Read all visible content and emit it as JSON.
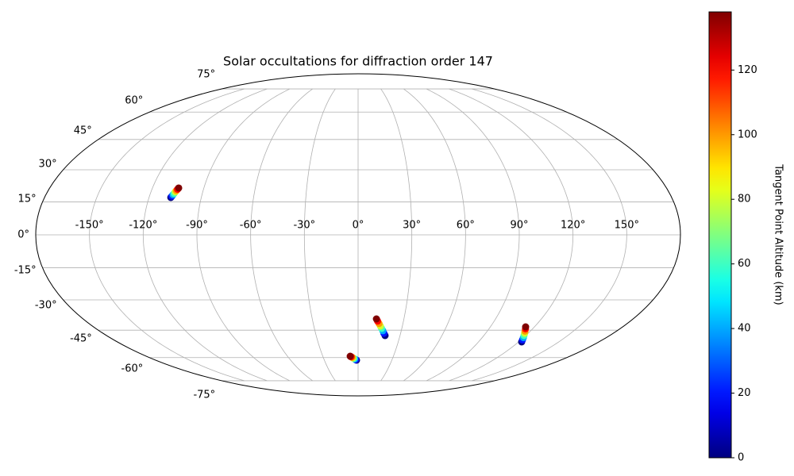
{
  "chart_data": {
    "type": "scatter",
    "projection": "mollweide",
    "title": "Solar occultations for diffraction order 147",
    "x": [
      -107.5,
      -107.1,
      -106.7,
      -106.3,
      -105.9,
      -105.5,
      -105.1,
      -104.7,
      19.3,
      18.2,
      17.2,
      16.1,
      15.1,
      14.0,
      12.9,
      12.0,
      -1.4,
      -2.2,
      -3.0,
      -3.7,
      -4.5,
      -5.2,
      -6.0,
      -6.7,
      122.3,
      121.1,
      119.9,
      118.7,
      117.5,
      116.3,
      115.1,
      114.0
    ],
    "y": [
      17.0,
      17.6,
      18.3,
      18.9,
      19.6,
      20.2,
      20.8,
      21.4,
      -47.8,
      -46.6,
      -45.3,
      -44.1,
      -42.9,
      -41.6,
      -40.4,
      -39.3,
      -61.5,
      -61.2,
      -60.8,
      -60.5,
      -60.2,
      -59.8,
      -59.5,
      -59.2,
      -51.2,
      -50.1,
      -48.9,
      -47.8,
      -46.6,
      -45.5,
      -44.3,
      -43.3
    ],
    "values": [
      0,
      20,
      40,
      60,
      80,
      100,
      120,
      138,
      0,
      20,
      40,
      60,
      80,
      100,
      120,
      138,
      0,
      20,
      40,
      60,
      80,
      100,
      120,
      138,
      0,
      20,
      40,
      60,
      80,
      100,
      120,
      138
    ],
    "colormap": "jet",
    "clim": [
      0,
      138
    ],
    "colorbar_label": "Tangent Point Altitude (km)",
    "colorbar_ticks": [
      0,
      20,
      40,
      60,
      80,
      100,
      120
    ],
    "grid": true,
    "grid_lat_limit": 75,
    "xticks": [
      {
        "value": -150,
        "label": "-150°"
      },
      {
        "value": -120,
        "label": "-120°"
      },
      {
        "value": -90,
        "label": "-90°"
      },
      {
        "value": -60,
        "label": "-60°"
      },
      {
        "value": -30,
        "label": "-30°"
      },
      {
        "value": 0,
        "label": "0°"
      },
      {
        "value": 30,
        "label": "30°"
      },
      {
        "value": 60,
        "label": "60°"
      },
      {
        "value": 90,
        "label": "90°"
      },
      {
        "value": 120,
        "label": "120°"
      },
      {
        "value": 150,
        "label": "150°"
      }
    ],
    "yticks": [
      {
        "value": -75,
        "label": "-75°"
      },
      {
        "value": -60,
        "label": "-60°"
      },
      {
        "value": -45,
        "label": "-45°"
      },
      {
        "value": -30,
        "label": "-30°"
      },
      {
        "value": -15,
        "label": "-15°"
      },
      {
        "value": 0,
        "label": "0°"
      },
      {
        "value": 15,
        "label": "15°"
      },
      {
        "value": 30,
        "label": "30°"
      },
      {
        "value": 45,
        "label": "45°"
      },
      {
        "value": 60,
        "label": "60°"
      },
      {
        "value": 75,
        "label": "75°"
      }
    ]
  }
}
